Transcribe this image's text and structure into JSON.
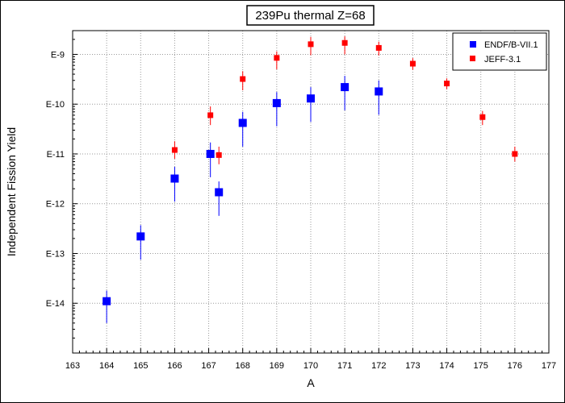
{
  "chart_data": {
    "type": "scatter",
    "title": "239Pu thermal Z=68",
    "xlabel": "A",
    "ylabel": "Independent Fission Yield",
    "xlim": [
      163,
      177
    ],
    "ylim": [
      1e-15,
      3e-09
    ],
    "y_scale": "log",
    "grid": true,
    "legend_position": "top-right",
    "x_ticks": [
      "163",
      "164",
      "165",
      "166",
      "167",
      "168",
      "169",
      "170",
      "171",
      "172",
      "173",
      "174",
      "175",
      "176",
      "177"
    ],
    "y_ticks": [
      {
        "value": 1e-09,
        "label": "E-9"
      },
      {
        "value": 1e-10,
        "label": "E-10"
      },
      {
        "value": 1e-11,
        "label": "E-11"
      },
      {
        "value": 1e-12,
        "label": "E-12"
      },
      {
        "value": 1e-13,
        "label": "E-13"
      },
      {
        "value": 1e-14,
        "label": "E-14"
      }
    ],
    "series": [
      {
        "name": "ENDF/B-VII.1",
        "color": "#0000ff",
        "marker": "square",
        "points": [
          {
            "x": 164.0,
            "y": 1.1e-14,
            "err_lo": 4e-15,
            "err_hi": 1.8e-14
          },
          {
            "x": 165.0,
            "y": 2.2e-13,
            "err_lo": 7.5e-14,
            "err_hi": 3.7e-13
          },
          {
            "x": 166.0,
            "y": 3.2e-12,
            "err_lo": 1.1e-12,
            "err_hi": 5.5e-12
          },
          {
            "x": 167.05,
            "y": 1e-11,
            "err_lo": 3.4e-12,
            "err_hi": 1.7e-11
          },
          {
            "x": 167.3,
            "y": 1.7e-12,
            "err_lo": 5.7e-13,
            "err_hi": 2.8e-12
          },
          {
            "x": 168.0,
            "y": 4.2e-11,
            "err_lo": 1.4e-11,
            "err_hi": 7e-11
          },
          {
            "x": 169.0,
            "y": 1.05e-10,
            "err_lo": 3.6e-11,
            "err_hi": 1.75e-10
          },
          {
            "x": 170.0,
            "y": 1.3e-10,
            "err_lo": 4.4e-11,
            "err_hi": 2.2e-10
          },
          {
            "x": 171.0,
            "y": 2.2e-10,
            "err_lo": 7.5e-11,
            "err_hi": 3.7e-10
          },
          {
            "x": 172.0,
            "y": 1.8e-10,
            "err_lo": 6.1e-11,
            "err_hi": 3e-10
          }
        ]
      },
      {
        "name": "JEFF-3.1",
        "color": "#ff0000",
        "marker": "square",
        "points": [
          {
            "x": 166.0,
            "y": 1.2e-11,
            "err_lo": 8e-12,
            "err_hi": 1.8e-11
          },
          {
            "x": 167.05,
            "y": 6e-11,
            "err_lo": 3.8e-11,
            "err_hi": 9e-11
          },
          {
            "x": 167.3,
            "y": 9.5e-12,
            "err_lo": 6.2e-12,
            "err_hi": 1.4e-11
          },
          {
            "x": 168.0,
            "y": 3.2e-10,
            "err_lo": 1.9e-10,
            "err_hi": 4.6e-10
          },
          {
            "x": 169.0,
            "y": 8.5e-10,
            "err_lo": 5e-10,
            "err_hi": 1.15e-09
          },
          {
            "x": 170.0,
            "y": 1.6e-09,
            "err_lo": 9.6e-10,
            "err_hi": 2.25e-09
          },
          {
            "x": 171.0,
            "y": 1.7e-09,
            "err_lo": 1e-09,
            "err_hi": 2.3e-09
          },
          {
            "x": 172.0,
            "y": 1.35e-09,
            "err_lo": 9.5e-10,
            "err_hi": 1.8e-09
          },
          {
            "x": 173.0,
            "y": 6.5e-10,
            "err_lo": 4.9e-10,
            "err_hi": 8.4e-10
          },
          {
            "x": 174.0,
            "y": 2.6e-10,
            "err_lo": 2e-10,
            "err_hi": 3.3e-10
          },
          {
            "x": 175.05,
            "y": 5.5e-11,
            "err_lo": 3.8e-11,
            "err_hi": 7.3e-11
          },
          {
            "x": 176.0,
            "y": 1e-11,
            "err_lo": 7e-12,
            "err_hi": 1.4e-11
          }
        ]
      }
    ]
  }
}
